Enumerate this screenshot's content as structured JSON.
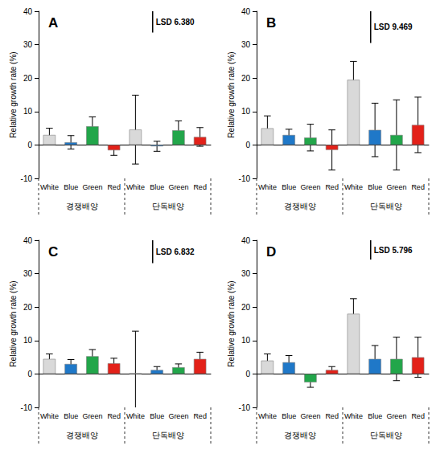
{
  "chart_data": [
    {
      "type": "bar",
      "title": "A",
      "annotation": "LSD 6.380",
      "lsd": 6.38,
      "y_label": "Relative growth rate (%)",
      "categories": [
        "White",
        "Blue",
        "Green",
        "Red",
        "White",
        "Blue",
        "Green",
        "Red"
      ],
      "group_labels": [
        "경쟁배양",
        "단독배양"
      ],
      "values": [
        3.0,
        0.8,
        5.6,
        -1.6,
        4.6,
        -0.4,
        4.4,
        2.4
      ],
      "errors": [
        2.0,
        2.0,
        2.8,
        1.5,
        10.3,
        1.5,
        2.8,
        2.8
      ],
      "colors": [
        "#d9d9d9",
        "#1f78c8",
        "#22a64a",
        "#e32119",
        "#d9d9d9",
        "#1f78c8",
        "#22a64a",
        "#e32119"
      ],
      "ylim": [
        -10,
        40
      ],
      "yticks": [
        -10,
        0,
        10,
        20,
        30,
        40
      ],
      "grid": false
    },
    {
      "type": "bar",
      "title": "B",
      "annotation": "LSD 9.469",
      "lsd": 9.469,
      "y_label": "Relative growth rate (%)",
      "categories": [
        "White",
        "Blue",
        "Green",
        "Red",
        "White",
        "Blue",
        "Green",
        "Red"
      ],
      "group_labels": [
        "경쟁배양",
        "단독배양"
      ],
      "values": [
        5.0,
        3.0,
        2.2,
        -1.5,
        19.5,
        4.5,
        3.0,
        6.0
      ],
      "errors": [
        3.7,
        1.7,
        4.0,
        6.0,
        5.5,
        8.0,
        10.5,
        8.3
      ],
      "colors": [
        "#d9d9d9",
        "#1f78c8",
        "#22a64a",
        "#e32119",
        "#d9d9d9",
        "#1f78c8",
        "#22a64a",
        "#e32119"
      ],
      "ylim": [
        -10,
        40
      ],
      "yticks": [
        -10,
        0,
        10,
        20,
        30,
        40
      ],
      "grid": false
    },
    {
      "type": "bar",
      "title": "C",
      "annotation": "LSD 6.832",
      "lsd": 6.832,
      "y_label": "Relative growth rate (%)",
      "categories": [
        "White",
        "Blue",
        "Green",
        "Red",
        "White",
        "Blue",
        "Green",
        "Red"
      ],
      "group_labels": [
        "경쟁배양",
        "단독배양"
      ],
      "values": [
        4.5,
        3.0,
        5.3,
        3.2,
        0.2,
        1.2,
        2.0,
        4.5
      ],
      "errors": [
        1.5,
        1.3,
        2.0,
        1.5,
        12.6,
        1.0,
        1.0,
        2.0
      ],
      "colors": [
        "#d9d9d9",
        "#1f78c8",
        "#22a64a",
        "#e32119",
        "#d9d9d9",
        "#1f78c8",
        "#22a64a",
        "#e32119"
      ],
      "ylim": [
        -10,
        40
      ],
      "yticks": [
        -10,
        0,
        10,
        20,
        30,
        40
      ],
      "grid": false
    },
    {
      "type": "bar",
      "title": "D",
      "annotation": "LSD 5.796",
      "lsd": 5.796,
      "y_label": "Relative growth rate (%)",
      "categories": [
        "White",
        "Blue",
        "Green",
        "Red",
        "White",
        "Blue",
        "Green",
        "Red"
      ],
      "group_labels": [
        "경쟁배양",
        "단독배양"
      ],
      "values": [
        4.0,
        3.5,
        -2.5,
        1.2,
        18.0,
        4.5,
        4.5,
        5.0
      ],
      "errors": [
        2.0,
        2.0,
        1.5,
        1.0,
        4.5,
        4.0,
        6.5,
        6.0
      ],
      "colors": [
        "#d9d9d9",
        "#1f78c8",
        "#22a64a",
        "#e32119",
        "#d9d9d9",
        "#1f78c8",
        "#22a64a",
        "#e32119"
      ],
      "ylim": [
        -10,
        40
      ],
      "yticks": [
        -10,
        0,
        10,
        20,
        30,
        40
      ],
      "grid": false
    }
  ]
}
